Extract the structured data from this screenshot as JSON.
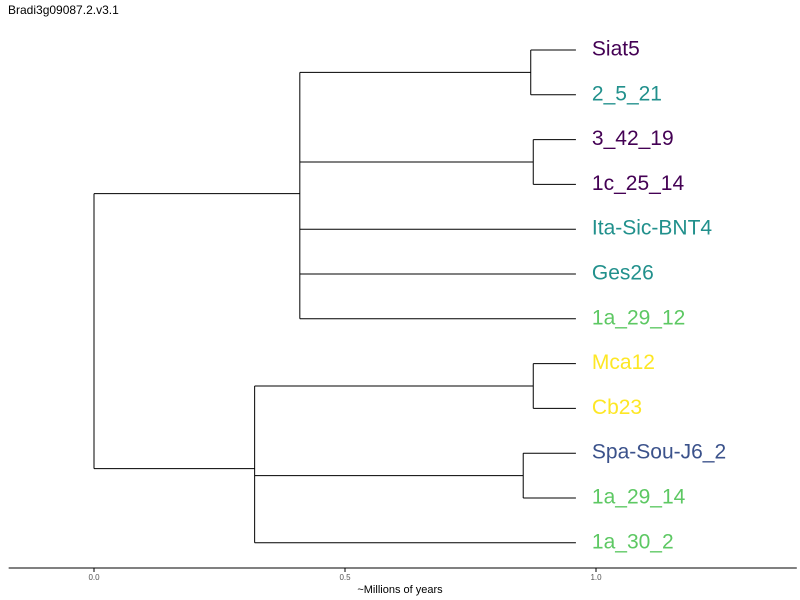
{
  "title": "Bradi3g09087.2.v3.1",
  "tree": {
    "leaves": [
      {
        "name": "Siat5",
        "color": "#440154"
      },
      {
        "name": "2_5_21",
        "color": "#21908C"
      },
      {
        "name": "3_42_19",
        "color": "#440154"
      },
      {
        "name": "1c_25_14",
        "color": "#440154"
      },
      {
        "name": "Ita-Sic-BNT4",
        "color": "#21908C"
      },
      {
        "name": "Ges26",
        "color": "#21908C"
      },
      {
        "name": "1a_29_12",
        "color": "#5DC863"
      },
      {
        "name": "Mca12",
        "color": "#FDE725"
      },
      {
        "name": "Cb23",
        "color": "#FDE725"
      },
      {
        "name": "Spa-Sou-J6_2",
        "color": "#3B528B"
      },
      {
        "name": "1a_29_14",
        "color": "#5DC863"
      },
      {
        "name": "1a_30_2",
        "color": "#5DC863"
      }
    ],
    "nodes": {
      "root": {
        "age": 0.0
      },
      "cladeA": {
        "age": 0.41
      },
      "siat5_pair": {
        "age": 0.87
      },
      "c42_pair": {
        "age": 0.875
      },
      "cladeB": {
        "age": 0.32
      },
      "mca_pair": {
        "age": 0.875
      },
      "spa_group": {
        "age": 0.855
      }
    },
    "leaf_age": 0.96
  },
  "axis": {
    "label": "~Millions of years",
    "ticks": [
      {
        "value": 0.0,
        "label": "0.0"
      },
      {
        "value": 0.5,
        "label": "0.5"
      },
      {
        "value": 1.0,
        "label": "1.0"
      }
    ],
    "range": [
      -0.17,
      1.4
    ]
  },
  "colors": {
    "branch": "#000000",
    "axis": "#333333"
  }
}
